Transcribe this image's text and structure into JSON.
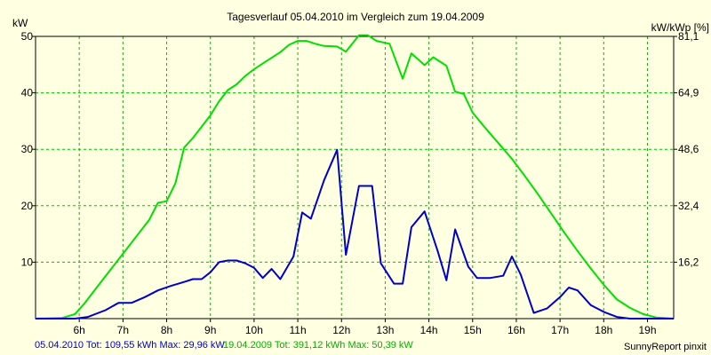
{
  "chart_data": {
    "type": "line",
    "title": "Tagesverlauf 05.04.2010 im Vergleich zum 19.04.2009",
    "ylabel_left": "kW",
    "ylabel_right": "kW/kWp [%]",
    "xlim": [
      5,
      19.6
    ],
    "ylim": [
      0,
      50
    ],
    "yticks_left": [
      10,
      20,
      30,
      40,
      50
    ],
    "yticks_right": [
      "16,2",
      "32,4",
      "48,6",
      "64,9",
      "81,1"
    ],
    "xticks": [
      "6h",
      "7h",
      "8h",
      "9h",
      "10h",
      "11h",
      "12h",
      "13h",
      "14h",
      "15h",
      "16h",
      "17h",
      "18h",
      "19h"
    ],
    "xtick_values": [
      6,
      7,
      8,
      9,
      10,
      11,
      12,
      13,
      14,
      15,
      16,
      17,
      18,
      19
    ],
    "grid": true,
    "colors": {
      "series_2010": "#0000c8",
      "series_2009": "#00e000",
      "grid": "#00c000",
      "background": "#ffffe1"
    },
    "series": [
      {
        "points": [
          [
            5.0,
            0
          ],
          [
            5.5,
            0
          ],
          [
            5.9,
            0
          ],
          [
            6.2,
            0.3
          ],
          [
            6.6,
            1.5
          ],
          [
            6.9,
            2.8
          ],
          [
            7.2,
            2.8
          ],
          [
            7.5,
            3.8
          ],
          [
            7.8,
            5
          ],
          [
            8.1,
            5.8
          ],
          [
            8.4,
            6.5
          ],
          [
            8.6,
            7
          ],
          [
            8.8,
            7
          ],
          [
            9.0,
            8.2
          ],
          [
            9.2,
            10
          ],
          [
            9.4,
            10.3
          ],
          [
            9.6,
            10.3
          ],
          [
            9.8,
            9.8
          ],
          [
            10.0,
            9
          ],
          [
            10.2,
            7.2
          ],
          [
            10.4,
            8.8
          ],
          [
            10.6,
            7
          ],
          [
            10.9,
            11
          ],
          [
            11.1,
            18.8
          ],
          [
            11.3,
            17.7
          ],
          [
            11.6,
            24.5
          ],
          [
            11.9,
            29.9
          ],
          [
            12.1,
            11.3
          ],
          [
            12.4,
            23.5
          ],
          [
            12.7,
            23.5
          ],
          [
            12.9,
            9.8
          ],
          [
            13.2,
            6.2
          ],
          [
            13.4,
            6.2
          ],
          [
            13.6,
            16.2
          ],
          [
            13.9,
            19
          ],
          [
            14.2,
            12
          ],
          [
            14.4,
            6.8
          ],
          [
            14.6,
            15.8
          ],
          [
            14.9,
            9.2
          ],
          [
            15.1,
            7.2
          ],
          [
            15.4,
            7.2
          ],
          [
            15.7,
            7.6
          ],
          [
            15.9,
            11
          ],
          [
            16.1,
            7.8
          ],
          [
            16.4,
            1
          ],
          [
            16.7,
            1.8
          ],
          [
            17.0,
            3.8
          ],
          [
            17.2,
            5.5
          ],
          [
            17.4,
            5
          ],
          [
            17.7,
            2.4
          ],
          [
            18.0,
            1.2
          ],
          [
            18.3,
            0.3
          ],
          [
            18.6,
            0
          ],
          [
            19.6,
            0
          ]
        ]
      },
      {
        "points": [
          [
            5.0,
            0
          ],
          [
            5.6,
            0.1
          ],
          [
            5.9,
            0.8
          ],
          [
            6.1,
            2.5
          ],
          [
            6.4,
            5.5
          ],
          [
            6.7,
            8.5
          ],
          [
            7.0,
            11.5
          ],
          [
            7.3,
            14.5
          ],
          [
            7.6,
            17.5
          ],
          [
            7.8,
            20.5
          ],
          [
            8.0,
            20.8
          ],
          [
            8.2,
            24
          ],
          [
            8.4,
            30.3
          ],
          [
            8.6,
            32
          ],
          [
            8.8,
            34
          ],
          [
            9.0,
            36
          ],
          [
            9.2,
            38.5
          ],
          [
            9.4,
            40.5
          ],
          [
            9.6,
            41.5
          ],
          [
            9.8,
            43
          ],
          [
            10.0,
            44.2
          ],
          [
            10.3,
            45.7
          ],
          [
            10.6,
            47.2
          ],
          [
            10.8,
            48.5
          ],
          [
            11.0,
            49.2
          ],
          [
            11.2,
            49.2
          ],
          [
            11.4,
            48.7
          ],
          [
            11.6,
            48.3
          ],
          [
            11.9,
            48.2
          ],
          [
            12.1,
            47.3
          ],
          [
            12.4,
            50.2
          ],
          [
            12.6,
            50.2
          ],
          [
            12.8,
            49.2
          ],
          [
            13.1,
            48.7
          ],
          [
            13.4,
            42.5
          ],
          [
            13.6,
            47
          ],
          [
            13.9,
            44.9
          ],
          [
            14.1,
            46.3
          ],
          [
            14.4,
            44.8
          ],
          [
            14.6,
            40.2
          ],
          [
            14.8,
            39.8
          ],
          [
            15.0,
            36.5
          ],
          [
            15.3,
            33.7
          ],
          [
            15.6,
            31
          ],
          [
            15.9,
            28.3
          ],
          [
            16.2,
            25.2
          ],
          [
            16.5,
            22
          ],
          [
            16.8,
            18.6
          ],
          [
            17.1,
            15.2
          ],
          [
            17.4,
            12
          ],
          [
            17.7,
            8.9
          ],
          [
            18.0,
            6
          ],
          [
            18.3,
            3.4
          ],
          [
            18.6,
            1.9
          ],
          [
            18.9,
            0.8
          ],
          [
            19.2,
            0.2
          ],
          [
            19.6,
            0
          ]
        ]
      }
    ],
    "footer_2010": "05.04.2010 Tot: 109,55 kWh Max: 29,96 kW",
    "footer_2009": "19.04.2009 Tot: 391,12 kWh Max: 50,39 kW",
    "credit": "SunnyReport pinxit"
  }
}
